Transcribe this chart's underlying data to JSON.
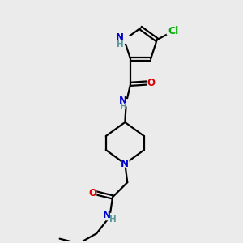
{
  "bg_color": "#ebebeb",
  "atom_colors": {
    "C": "#000000",
    "N": "#0000cc",
    "O": "#dd0000",
    "Cl": "#00aa00",
    "H": "#5a9a9a"
  },
  "bond_color": "#000000",
  "bond_width": 1.6,
  "font_size_atom": 8.5,
  "fig_size": [
    3.0,
    3.0
  ],
  "dpi": 100
}
